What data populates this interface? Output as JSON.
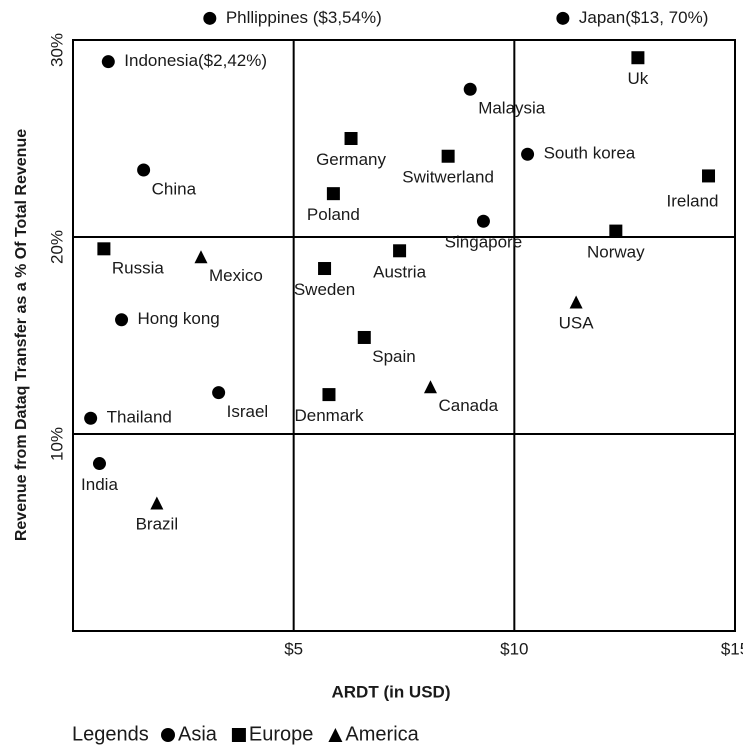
{
  "chart_data": {
    "type": "scatter",
    "x_label": "ARDT (in USD)",
    "y_label": "Revenue from Dataq Transfer as a % Of Total Revenue",
    "xlim": [
      0,
      15
    ],
    "ylim": [
      0,
      30
    ],
    "xticks": [
      {
        "value": 5,
        "label": "$5"
      },
      {
        "value": 10,
        "label": "$10"
      },
      {
        "value": 15,
        "label": "$15"
      }
    ],
    "yticks": [
      {
        "value": 10,
        "label": "10%"
      },
      {
        "value": 20,
        "label": "20%"
      },
      {
        "value": 30,
        "label": "30%"
      }
    ],
    "grid": true,
    "legend_title": "Legends",
    "series": [
      {
        "name": "Asia",
        "marker": "circle",
        "color": "#000000",
        "labels": [
          "Phllippines ($3,54%)",
          "Japan($13, 70%)",
          "Indonesia($2,42%)",
          "Malaysia",
          "South korea",
          "China",
          "Singapore",
          "Hong kong",
          "Israel",
          "Thailand",
          "India"
        ],
        "x": [
          3.1,
          11.1,
          0.8,
          9.0,
          10.3,
          1.6,
          9.3,
          1.1,
          3.3,
          0.4,
          0.6
        ],
        "values": [
          31.1,
          31.1,
          28.9,
          27.5,
          24.2,
          23.4,
          20.8,
          15.8,
          12.1,
          10.8,
          8.5
        ]
      },
      {
        "name": "Europe",
        "marker": "square",
        "color": "#000000",
        "labels": [
          "Uk",
          "Germany",
          "Switwerland",
          "Ireland",
          "Poland",
          "Norway",
          "Russia",
          "Austria",
          "Sweden",
          "Spain",
          "Denmark"
        ],
        "x": [
          12.8,
          6.3,
          8.5,
          14.4,
          5.9,
          12.3,
          0.7,
          7.4,
          5.7,
          6.6,
          5.8
        ],
        "values": [
          29.1,
          25.0,
          24.1,
          23.1,
          22.2,
          20.3,
          19.4,
          19.3,
          18.4,
          14.9,
          12.0
        ]
      },
      {
        "name": "America",
        "marker": "triangle",
        "color": "#000000",
        "labels": [
          "Mexico",
          "USA",
          "Canada",
          "Brazil"
        ],
        "x": [
          2.9,
          11.4,
          8.1,
          1.9
        ],
        "values": [
          19.0,
          16.7,
          12.4,
          6.5
        ]
      }
    ]
  }
}
